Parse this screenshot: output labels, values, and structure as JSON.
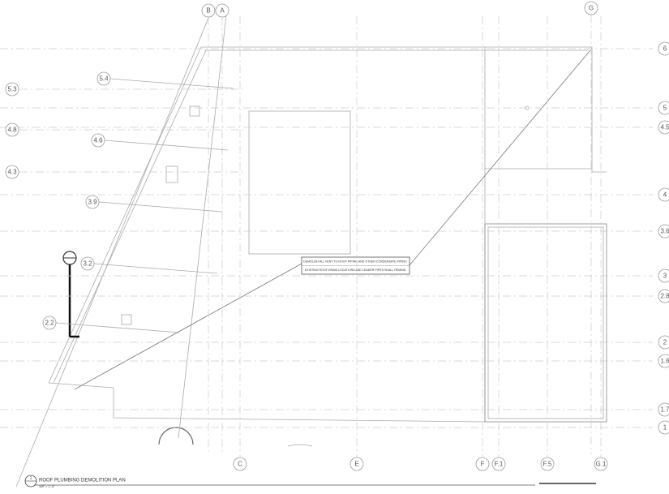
{
  "grid_top": [
    "B",
    "A",
    "G"
  ],
  "grid_right": [
    "6",
    "5",
    "4.5",
    "4",
    "3.6",
    "3",
    "2.8",
    "2",
    "1.6",
    "1.7",
    "1"
  ],
  "grid_left": [
    "5.3",
    "4.8",
    "4.3"
  ],
  "grid_interior": [
    "5.4",
    "4.6",
    "3.9",
    "3.2",
    "2.2"
  ],
  "grid_bottom": [
    "C",
    "E",
    "F",
    "F.1",
    "F.5",
    "G.1"
  ],
  "note": {
    "line1": "DEMOLISH ALL VENT TO ROOF PIPING AND OTHER CONDENSATE PIPING",
    "line2": "EXISTING ROOF DRAIN LOCATIONS AND LEADER PIPES SHALL REMAIN"
  },
  "title_block": {
    "number": "1",
    "title": "ROOF PLUMBING DEMOLITION PLAN",
    "scale": "1/8\" = 1'-0\""
  }
}
